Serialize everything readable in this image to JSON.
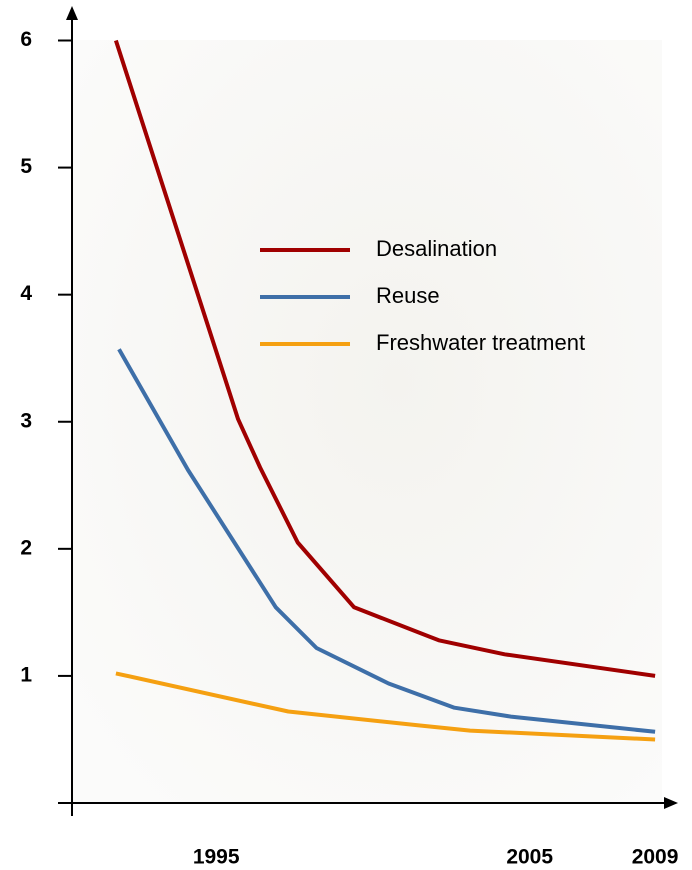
{
  "chart_data": {
    "type": "line",
    "series": [
      {
        "name": "Desalination",
        "color": "#a00000",
        "x": [
          1991.8,
          1995.7,
          1996.4,
          1997.6,
          1999.4,
          2002.1,
          2004.2,
          2009
        ],
        "values": [
          6.0,
          3.02,
          2.64,
          2.05,
          1.54,
          1.28,
          1.17,
          1.0
        ]
      },
      {
        "name": "Reuse",
        "color": "#3e6fa8",
        "x": [
          1991.9,
          1994.1,
          1996.9,
          1998.2,
          2000.5,
          2002.6,
          2004.4,
          2009
        ],
        "values": [
          3.57,
          2.62,
          1.54,
          1.22,
          0.94,
          0.75,
          0.68,
          0.56
        ]
      },
      {
        "name": "Freshwater treatment",
        "color": "#f5a011",
        "x": [
          1991.8,
          1997.3,
          2001.5,
          2003.1,
          2009
        ],
        "values": [
          1.02,
          0.72,
          0.61,
          0.57,
          0.5
        ]
      }
    ],
    "xlim": [
      1990.4,
      2009.54
    ],
    "xticks": [
      1995,
      2005,
      2009
    ],
    "ylim": [
      0,
      6.24
    ],
    "yticks": [
      1,
      2,
      3,
      4,
      5,
      6
    ]
  }
}
